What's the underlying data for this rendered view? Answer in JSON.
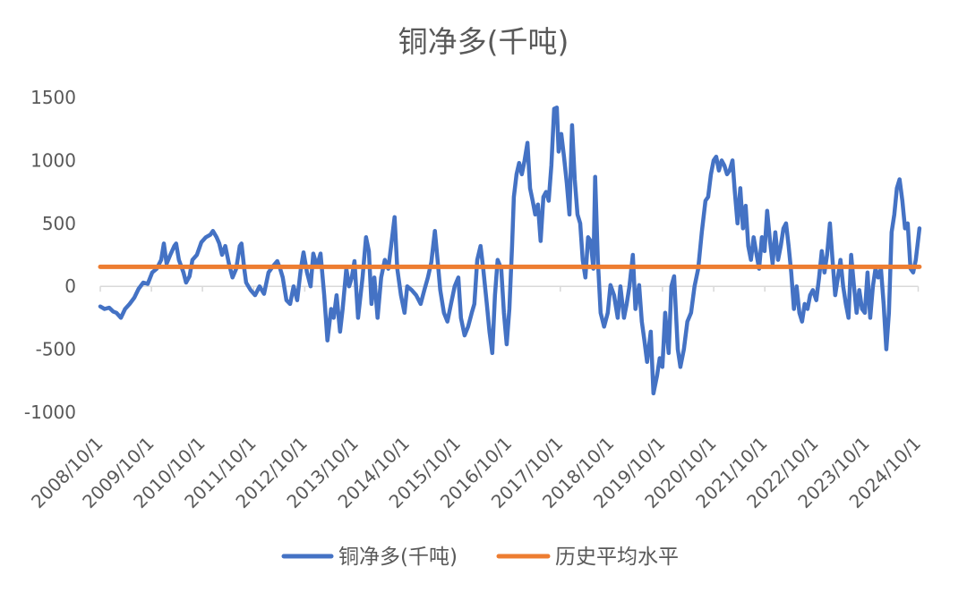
{
  "chart_data": {
    "type": "line",
    "title": "铜净多(千吨)",
    "x_type": "date",
    "x_range": [
      "2008-10-01",
      "2024-10-01"
    ],
    "x_tick_labels": [
      "2008/10/1",
      "2009/10/1",
      "2010/10/1",
      "2011/10/1",
      "2012/10/1",
      "2013/10/1",
      "2014/10/1",
      "2015/10/1",
      "2016/10/1",
      "2017/10/1",
      "2018/10/1",
      "2019/10/1",
      "2020/10/1",
      "2021/10/1",
      "2022/10/1",
      "2023/10/1",
      "2024/10/1"
    ],
    "ylim": [
      -1000,
      1500
    ],
    "y_ticks": [
      1500,
      1000,
      500,
      0,
      -500,
      -1000
    ],
    "grid": false,
    "legend_position": "bottom",
    "series": [
      {
        "name": "铜净多(千吨)",
        "color": "#4472C4",
        "points": [
          [
            "2008-10-01",
            -160
          ],
          [
            "2008-11-01",
            -180
          ],
          [
            "2008-12-04",
            -170
          ],
          [
            "2009-01-01",
            -200
          ],
          [
            "2009-01-24",
            -210
          ],
          [
            "2009-02-25",
            -250
          ],
          [
            "2009-03-27",
            -180
          ],
          [
            "2009-04-29",
            -140
          ],
          [
            "2009-06-01",
            -90
          ],
          [
            "2009-07-02",
            -20
          ],
          [
            "2009-08-04",
            30
          ],
          [
            "2009-09-05",
            20
          ],
          [
            "2009-10-07",
            110
          ],
          [
            "2009-11-08",
            140
          ],
          [
            "2009-12-10",
            210
          ],
          [
            "2009-12-29",
            340
          ],
          [
            "2010-01-18",
            180
          ],
          [
            "2010-02-13",
            250
          ],
          [
            "2010-03-14",
            320
          ],
          [
            "2010-03-27",
            340
          ],
          [
            "2010-04-16",
            210
          ],
          [
            "2010-05-18",
            110
          ],
          [
            "2010-06-06",
            30
          ],
          [
            "2010-07-01",
            80
          ],
          [
            "2010-07-21",
            210
          ],
          [
            "2010-08-22",
            250
          ],
          [
            "2010-09-23",
            350
          ],
          [
            "2010-10-25",
            390
          ],
          [
            "2010-11-26",
            410
          ],
          [
            "2010-12-15",
            440
          ],
          [
            "2011-01-10",
            390
          ],
          [
            "2011-01-29",
            340
          ],
          [
            "2011-02-18",
            250
          ],
          [
            "2011-03-13",
            320
          ],
          [
            "2011-04-08",
            180
          ],
          [
            "2011-05-04",
            70
          ],
          [
            "2011-05-30",
            140
          ],
          [
            "2011-06-25",
            320
          ],
          [
            "2011-07-07",
            340
          ],
          [
            "2011-07-27",
            140
          ],
          [
            "2011-08-09",
            30
          ],
          [
            "2011-09-10",
            -30
          ],
          [
            "2011-10-12",
            -70
          ],
          [
            "2011-11-13",
            0
          ],
          [
            "2011-12-15",
            -60
          ],
          [
            "2012-01-16",
            110
          ],
          [
            "2012-02-17",
            160
          ],
          [
            "2012-03-19",
            200
          ],
          [
            "2012-04-08",
            140
          ],
          [
            "2012-04-27",
            70
          ],
          [
            "2012-05-23",
            -110
          ],
          [
            "2012-06-18",
            -140
          ],
          [
            "2012-07-13",
            0
          ],
          [
            "2012-08-08",
            -110
          ],
          [
            "2012-09-03",
            140
          ],
          [
            "2012-09-22",
            270
          ],
          [
            "2012-10-17",
            110
          ],
          [
            "2012-11-12",
            0
          ],
          [
            "2012-12-01",
            260
          ],
          [
            "2012-12-27",
            160
          ],
          [
            "2013-01-22",
            260
          ],
          [
            "2013-02-17",
            -70
          ],
          [
            "2013-03-12",
            -430
          ],
          [
            "2013-04-07",
            -180
          ],
          [
            "2013-04-26",
            -250
          ],
          [
            "2013-05-16",
            -70
          ],
          [
            "2013-06-10",
            -360
          ],
          [
            "2013-06-29",
            -180
          ],
          [
            "2013-07-25",
            140
          ],
          [
            "2013-08-14",
            0
          ],
          [
            "2013-09-02",
            70
          ],
          [
            "2013-09-21",
            200
          ],
          [
            "2013-10-17",
            -250
          ],
          [
            "2013-11-18",
            70
          ],
          [
            "2013-12-13",
            390
          ],
          [
            "2014-01-02",
            280
          ],
          [
            "2014-01-21",
            -140
          ],
          [
            "2014-02-10",
            70
          ],
          [
            "2014-03-05",
            -250
          ],
          [
            "2014-03-31",
            70
          ],
          [
            "2014-04-26",
            210
          ],
          [
            "2014-05-21",
            140
          ],
          [
            "2014-06-10",
            320
          ],
          [
            "2014-07-05",
            550
          ],
          [
            "2014-07-24",
            140
          ],
          [
            "2014-08-19",
            -70
          ],
          [
            "2014-09-14",
            -210
          ],
          [
            "2014-10-03",
            0
          ],
          [
            "2014-11-04",
            -30
          ],
          [
            "2014-12-06",
            -70
          ],
          [
            "2015-01-07",
            -140
          ],
          [
            "2015-02-02",
            -30
          ],
          [
            "2015-02-28",
            70
          ],
          [
            "2015-03-24",
            190
          ],
          [
            "2015-04-19",
            440
          ],
          [
            "2015-05-08",
            210
          ],
          [
            "2015-05-27",
            -30
          ],
          [
            "2015-06-22",
            -210
          ],
          [
            "2015-07-17",
            -280
          ],
          [
            "2015-08-12",
            -140
          ],
          [
            "2015-09-07",
            0
          ],
          [
            "2015-10-03",
            70
          ],
          [
            "2015-10-22",
            -250
          ],
          [
            "2015-11-17",
            -390
          ],
          [
            "2015-12-12",
            -320
          ],
          [
            "2016-01-07",
            -210
          ],
          [
            "2016-01-26",
            -140
          ],
          [
            "2016-02-15",
            210
          ],
          [
            "2016-03-10",
            320
          ],
          [
            "2016-03-29",
            140
          ],
          [
            "2016-04-24",
            -140
          ],
          [
            "2016-05-13",
            -360
          ],
          [
            "2016-06-02",
            -530
          ],
          [
            "2016-06-21",
            -70
          ],
          [
            "2016-07-10",
            210
          ],
          [
            "2016-08-05",
            140
          ],
          [
            "2016-08-24",
            -210
          ],
          [
            "2016-09-13",
            -460
          ],
          [
            "2016-10-02",
            -180
          ],
          [
            "2016-10-21",
            320
          ],
          [
            "2016-11-03",
            710
          ],
          [
            "2016-11-22",
            890
          ],
          [
            "2016-12-11",
            980
          ],
          [
            "2016-12-30",
            890
          ],
          [
            "2017-01-19",
            1000
          ],
          [
            "2017-02-08",
            1140
          ],
          [
            "2017-02-27",
            780
          ],
          [
            "2017-03-17",
            680
          ],
          [
            "2017-04-05",
            570
          ],
          [
            "2017-04-24",
            650
          ],
          [
            "2017-05-13",
            360
          ],
          [
            "2017-06-02",
            710
          ],
          [
            "2017-06-21",
            750
          ],
          [
            "2017-07-10",
            680
          ],
          [
            "2017-07-29",
            960
          ],
          [
            "2017-08-18",
            1410
          ],
          [
            "2017-09-06",
            1420
          ],
          [
            "2017-09-19",
            1070
          ],
          [
            "2017-10-08",
            1210
          ],
          [
            "2017-10-27",
            1030
          ],
          [
            "2017-11-16",
            820
          ],
          [
            "2017-12-05",
            570
          ],
          [
            "2017-12-24",
            1280
          ],
          [
            "2018-01-12",
            850
          ],
          [
            "2018-02-01",
            570
          ],
          [
            "2018-02-20",
            500
          ],
          [
            "2018-03-10",
            210
          ],
          [
            "2018-03-29",
            70
          ],
          [
            "2018-04-17",
            390
          ],
          [
            "2018-05-06",
            360
          ],
          [
            "2018-05-25",
            140
          ],
          [
            "2018-06-07",
            870
          ],
          [
            "2018-06-26",
            210
          ],
          [
            "2018-07-16",
            -210
          ],
          [
            "2018-08-10",
            -320
          ],
          [
            "2018-09-05",
            -210
          ],
          [
            "2018-09-24",
            10
          ],
          [
            "2018-10-20",
            -70
          ],
          [
            "2018-11-15",
            -250
          ],
          [
            "2018-12-04",
            0
          ],
          [
            "2018-12-30",
            -250
          ],
          [
            "2019-01-18",
            -140
          ],
          [
            "2019-02-07",
            0
          ],
          [
            "2019-03-03",
            250
          ],
          [
            "2019-03-22",
            -180
          ],
          [
            "2019-04-17",
            10
          ],
          [
            "2019-05-06",
            -280
          ],
          [
            "2019-05-25",
            -430
          ],
          [
            "2019-06-13",
            -600
          ],
          [
            "2019-07-09",
            -360
          ],
          [
            "2019-07-28",
            -850
          ],
          [
            "2019-08-23",
            -710
          ],
          [
            "2019-09-11",
            -570
          ],
          [
            "2019-09-30",
            -640
          ],
          [
            "2019-10-20",
            -210
          ],
          [
            "2019-11-14",
            -530
          ],
          [
            "2019-12-03",
            0
          ],
          [
            "2019-12-23",
            80
          ],
          [
            "2020-01-18",
            -500
          ],
          [
            "2020-02-06",
            -640
          ],
          [
            "2020-03-02",
            -500
          ],
          [
            "2020-03-27",
            -280
          ],
          [
            "2020-04-22",
            -210
          ],
          [
            "2020-05-17",
            0
          ],
          [
            "2020-06-12",
            140
          ],
          [
            "2020-07-08",
            430
          ],
          [
            "2020-08-03",
            680
          ],
          [
            "2020-08-22",
            710
          ],
          [
            "2020-09-11",
            890
          ],
          [
            "2020-09-30",
            1000
          ],
          [
            "2020-10-19",
            1030
          ],
          [
            "2020-11-07",
            920
          ],
          [
            "2020-11-27",
            1000
          ],
          [
            "2020-12-16",
            960
          ],
          [
            "2021-01-04",
            890
          ],
          [
            "2021-01-23",
            920
          ],
          [
            "2021-02-12",
            1000
          ],
          [
            "2021-03-01",
            750
          ],
          [
            "2021-03-20",
            500
          ],
          [
            "2021-04-09",
            780
          ],
          [
            "2021-04-28",
            460
          ],
          [
            "2021-05-17",
            640
          ],
          [
            "2021-06-05",
            320
          ],
          [
            "2021-06-24",
            210
          ],
          [
            "2021-07-13",
            390
          ],
          [
            "2021-08-02",
            260
          ],
          [
            "2021-08-21",
            140
          ],
          [
            "2021-09-10",
            390
          ],
          [
            "2021-09-29",
            280
          ],
          [
            "2021-10-18",
            600
          ],
          [
            "2021-11-07",
            360
          ],
          [
            "2021-11-26",
            180
          ],
          [
            "2021-12-15",
            430
          ],
          [
            "2022-01-04",
            210
          ],
          [
            "2022-01-23",
            320
          ],
          [
            "2022-02-11",
            460
          ],
          [
            "2022-03-02",
            500
          ],
          [
            "2022-03-20",
            320
          ],
          [
            "2022-04-08",
            110
          ],
          [
            "2022-04-27",
            -180
          ],
          [
            "2022-05-16",
            0
          ],
          [
            "2022-06-05",
            -210
          ],
          [
            "2022-06-24",
            -280
          ],
          [
            "2022-07-13",
            -140
          ],
          [
            "2022-08-02",
            -180
          ],
          [
            "2022-08-21",
            -70
          ],
          [
            "2022-09-09",
            -30
          ],
          [
            "2022-10-04",
            -110
          ],
          [
            "2022-10-24",
            70
          ],
          [
            "2022-11-12",
            280
          ],
          [
            "2022-12-01",
            110
          ],
          [
            "2022-12-20",
            250
          ],
          [
            "2023-01-09",
            500
          ],
          [
            "2023-01-28",
            210
          ],
          [
            "2023-02-16",
            -70
          ],
          [
            "2023-03-07",
            70
          ],
          [
            "2023-03-26",
            210
          ],
          [
            "2023-04-14",
            0
          ],
          [
            "2023-05-03",
            -140
          ],
          [
            "2023-05-22",
            -250
          ],
          [
            "2023-06-10",
            250
          ],
          [
            "2023-06-30",
            0
          ],
          [
            "2023-07-19",
            -210
          ],
          [
            "2023-08-07",
            -30
          ],
          [
            "2023-08-27",
            -180
          ],
          [
            "2023-09-16",
            -210
          ],
          [
            "2023-10-05",
            110
          ],
          [
            "2023-10-24",
            -250
          ],
          [
            "2023-11-12",
            0
          ],
          [
            "2023-12-01",
            140
          ],
          [
            "2023-12-20",
            70
          ],
          [
            "2024-01-09",
            140
          ],
          [
            "2024-01-28",
            -140
          ],
          [
            "2024-02-16",
            -500
          ],
          [
            "2024-03-06",
            -210
          ],
          [
            "2024-03-25",
            430
          ],
          [
            "2024-04-13",
            570
          ],
          [
            "2024-05-02",
            780
          ],
          [
            "2024-05-21",
            850
          ],
          [
            "2024-06-10",
            680
          ],
          [
            "2024-06-29",
            460
          ],
          [
            "2024-07-18",
            500
          ],
          [
            "2024-08-07",
            140
          ],
          [
            "2024-08-26",
            110
          ],
          [
            "2024-09-14",
            210
          ],
          [
            "2024-10-10",
            460
          ]
        ]
      },
      {
        "name": "历史平均水平",
        "color": "#ED7D31",
        "points": [
          [
            "2008-10-01",
            155
          ],
          [
            "2024-10-10",
            155
          ]
        ]
      }
    ]
  }
}
